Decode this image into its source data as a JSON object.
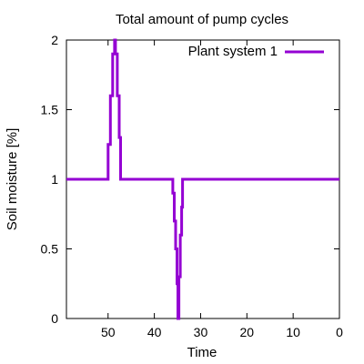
{
  "chart_data": {
    "type": "line",
    "title": "Total amount of pump cycles",
    "xlabel": "Time",
    "ylabel": "Soil moisture [%]",
    "xlim": [
      59,
      0
    ],
    "ylim": [
      0,
      2
    ],
    "x_reversed": true,
    "grid": false,
    "legend_position": "top-right",
    "x_ticks": [
      {
        "value": 50,
        "label": "50"
      },
      {
        "value": 40,
        "label": "40"
      },
      {
        "value": 30,
        "label": "30"
      },
      {
        "value": 20,
        "label": "20"
      },
      {
        "value": 10,
        "label": "10"
      },
      {
        "value": 0,
        "label": "0"
      }
    ],
    "y_ticks": [
      {
        "value": 0,
        "label": "0"
      },
      {
        "value": 0.5,
        "label": "0.5"
      },
      {
        "value": 1,
        "label": "1"
      },
      {
        "value": 1.5,
        "label": "1.5"
      },
      {
        "value": 2,
        "label": "2"
      }
    ],
    "series": [
      {
        "name": "Plant system 1",
        "color": "#9400d3",
        "style": "steps",
        "points": [
          [
            59,
            1
          ],
          [
            50,
            1
          ],
          [
            50,
            1.25
          ],
          [
            49.5,
            1.25
          ],
          [
            49.5,
            1.6
          ],
          [
            49,
            1.6
          ],
          [
            49,
            1.9
          ],
          [
            48.6,
            1.9
          ],
          [
            48.6,
            2
          ],
          [
            48.4,
            2
          ],
          [
            48.4,
            1.9
          ],
          [
            48,
            1.9
          ],
          [
            48,
            1.6
          ],
          [
            47.6,
            1.6
          ],
          [
            47.6,
            1.3
          ],
          [
            47.3,
            1.3
          ],
          [
            47.3,
            1
          ],
          [
            36,
            1
          ],
          [
            36,
            0.9
          ],
          [
            35.7,
            0.9
          ],
          [
            35.7,
            0.7
          ],
          [
            35.4,
            0.7
          ],
          [
            35.4,
            0.5
          ],
          [
            35.1,
            0.5
          ],
          [
            35.1,
            0.25
          ],
          [
            34.9,
            0.25
          ],
          [
            34.9,
            0
          ],
          [
            34.7,
            0
          ],
          [
            34.7,
            0.3
          ],
          [
            34.4,
            0.3
          ],
          [
            34.4,
            0.6
          ],
          [
            34.1,
            0.6
          ],
          [
            34.1,
            0.8
          ],
          [
            33.9,
            0.8
          ],
          [
            33.9,
            1
          ],
          [
            0,
            1
          ]
        ]
      }
    ]
  }
}
